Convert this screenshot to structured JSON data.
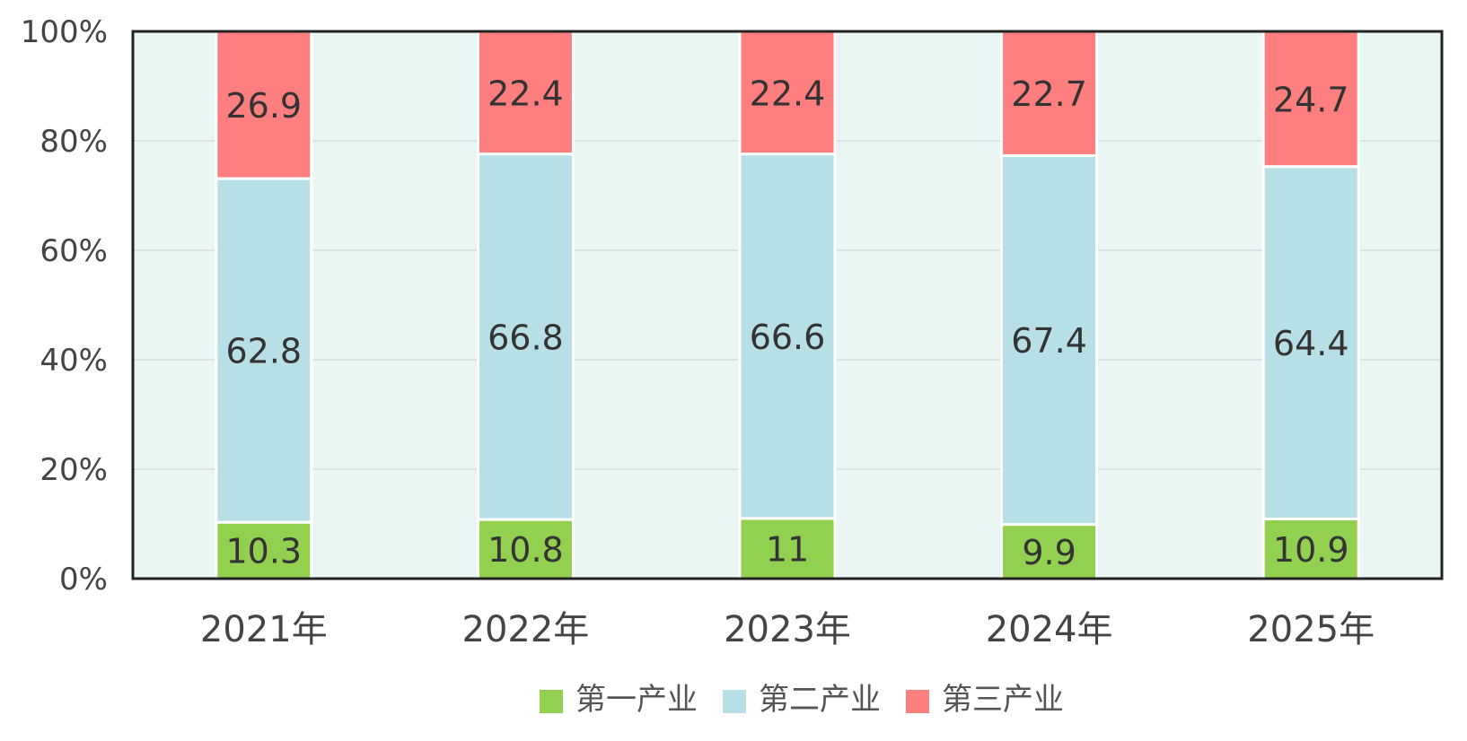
{
  "chart_data": {
    "type": "bar",
    "stacked": "percent",
    "categories": [
      "2021年",
      "2022年",
      "2023年",
      "2024年",
      "2025年"
    ],
    "series": [
      {
        "name": "第一产业",
        "color": "#92D050",
        "values": [
          10.3,
          10.8,
          11,
          9.9,
          10.9
        ]
      },
      {
        "name": "第二产业",
        "color": "#B7DFE6",
        "values": [
          62.8,
          66.8,
          66.6,
          67.4,
          64.4
        ]
      },
      {
        "name": "第三产业",
        "color": "#FF7F7F",
        "values": [
          26.9,
          22.4,
          22.4,
          22.7,
          24.7
        ]
      }
    ],
    "data_labels": [
      [
        "10.3",
        "10.8",
        "11",
        "9.9",
        "10.9"
      ],
      [
        "62.8",
        "66.8",
        "66.6",
        "67.4",
        "64.4"
      ],
      [
        "26.9",
        "22.4",
        "22.4",
        "22.7",
        "24.7"
      ]
    ],
    "ylim": [
      0,
      100
    ],
    "yticks": [
      0,
      20,
      40,
      60,
      80,
      100
    ],
    "ytick_labels": [
      "0%",
      "20%",
      "40%",
      "60%",
      "80%",
      "100%"
    ],
    "plot_background": "#EAF6F4",
    "grid": true,
    "legend_position": "bottom",
    "title": "",
    "xlabel": "",
    "ylabel": ""
  }
}
